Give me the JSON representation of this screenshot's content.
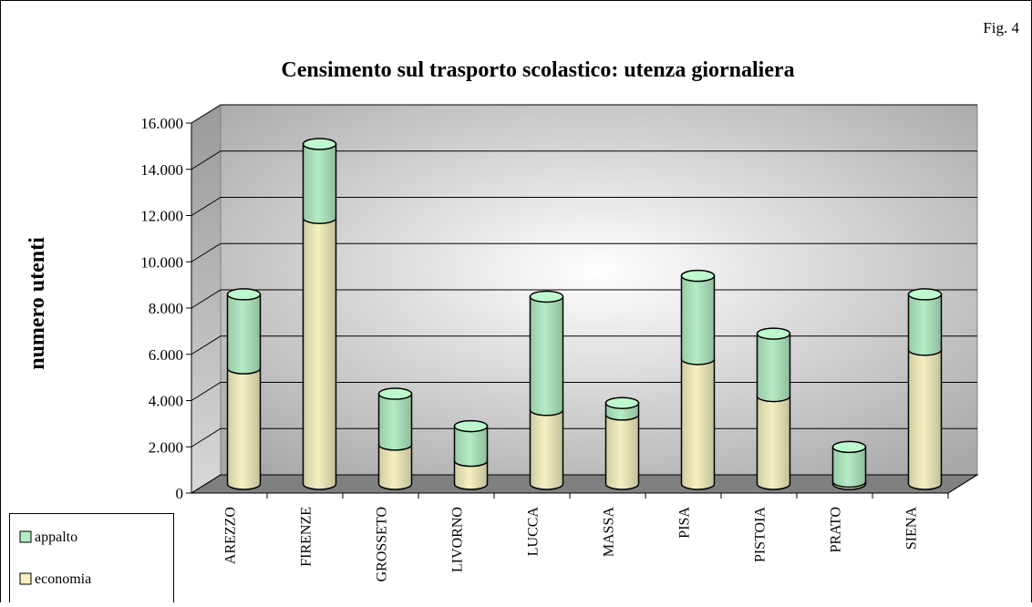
{
  "chart_data": {
    "type": "bar3d_stacked",
    "title": "Censimento sul trasporto scolastico:  utenza giornaliera",
    "annotation": "Fig. 4",
    "y_label": "numero utenti",
    "categories": [
      "AREZZO",
      "FIRENZE",
      "GROSSETO",
      "LIVORNO",
      "LUCCA",
      "MASSA",
      "PISA",
      "PISTOIA",
      "PRATO",
      "SIENA"
    ],
    "series": [
      {
        "name": "economia",
        "color": "#f4f0c0",
        "values": [
          5000,
          11500,
          1700,
          1000,
          3200,
          3000,
          5400,
          3800,
          100,
          5800
        ]
      },
      {
        "name": "appalto",
        "color": "#b4ecc4",
        "values": [
          3200,
          3200,
          2200,
          1500,
          4900,
          500,
          3600,
          2700,
          1500,
          2400
        ]
      }
    ],
    "ylim": [
      0,
      16000
    ],
    "yticks": [
      0,
      {
        "value": 2000,
        "label": "2.000"
      },
      {
        "value": 4000,
        "label": "4.000"
      },
      {
        "value": 6000,
        "label": "6.000"
      },
      {
        "value": 8000,
        "label": "8.000"
      },
      {
        "value": 10000,
        "label": "10.000"
      },
      {
        "value": 12000,
        "label": "12.000"
      },
      {
        "value": 14000,
        "label": "14.000"
      },
      {
        "value": 16000,
        "label": "16.000"
      }
    ],
    "grid": true,
    "legend": "bottom-left"
  }
}
